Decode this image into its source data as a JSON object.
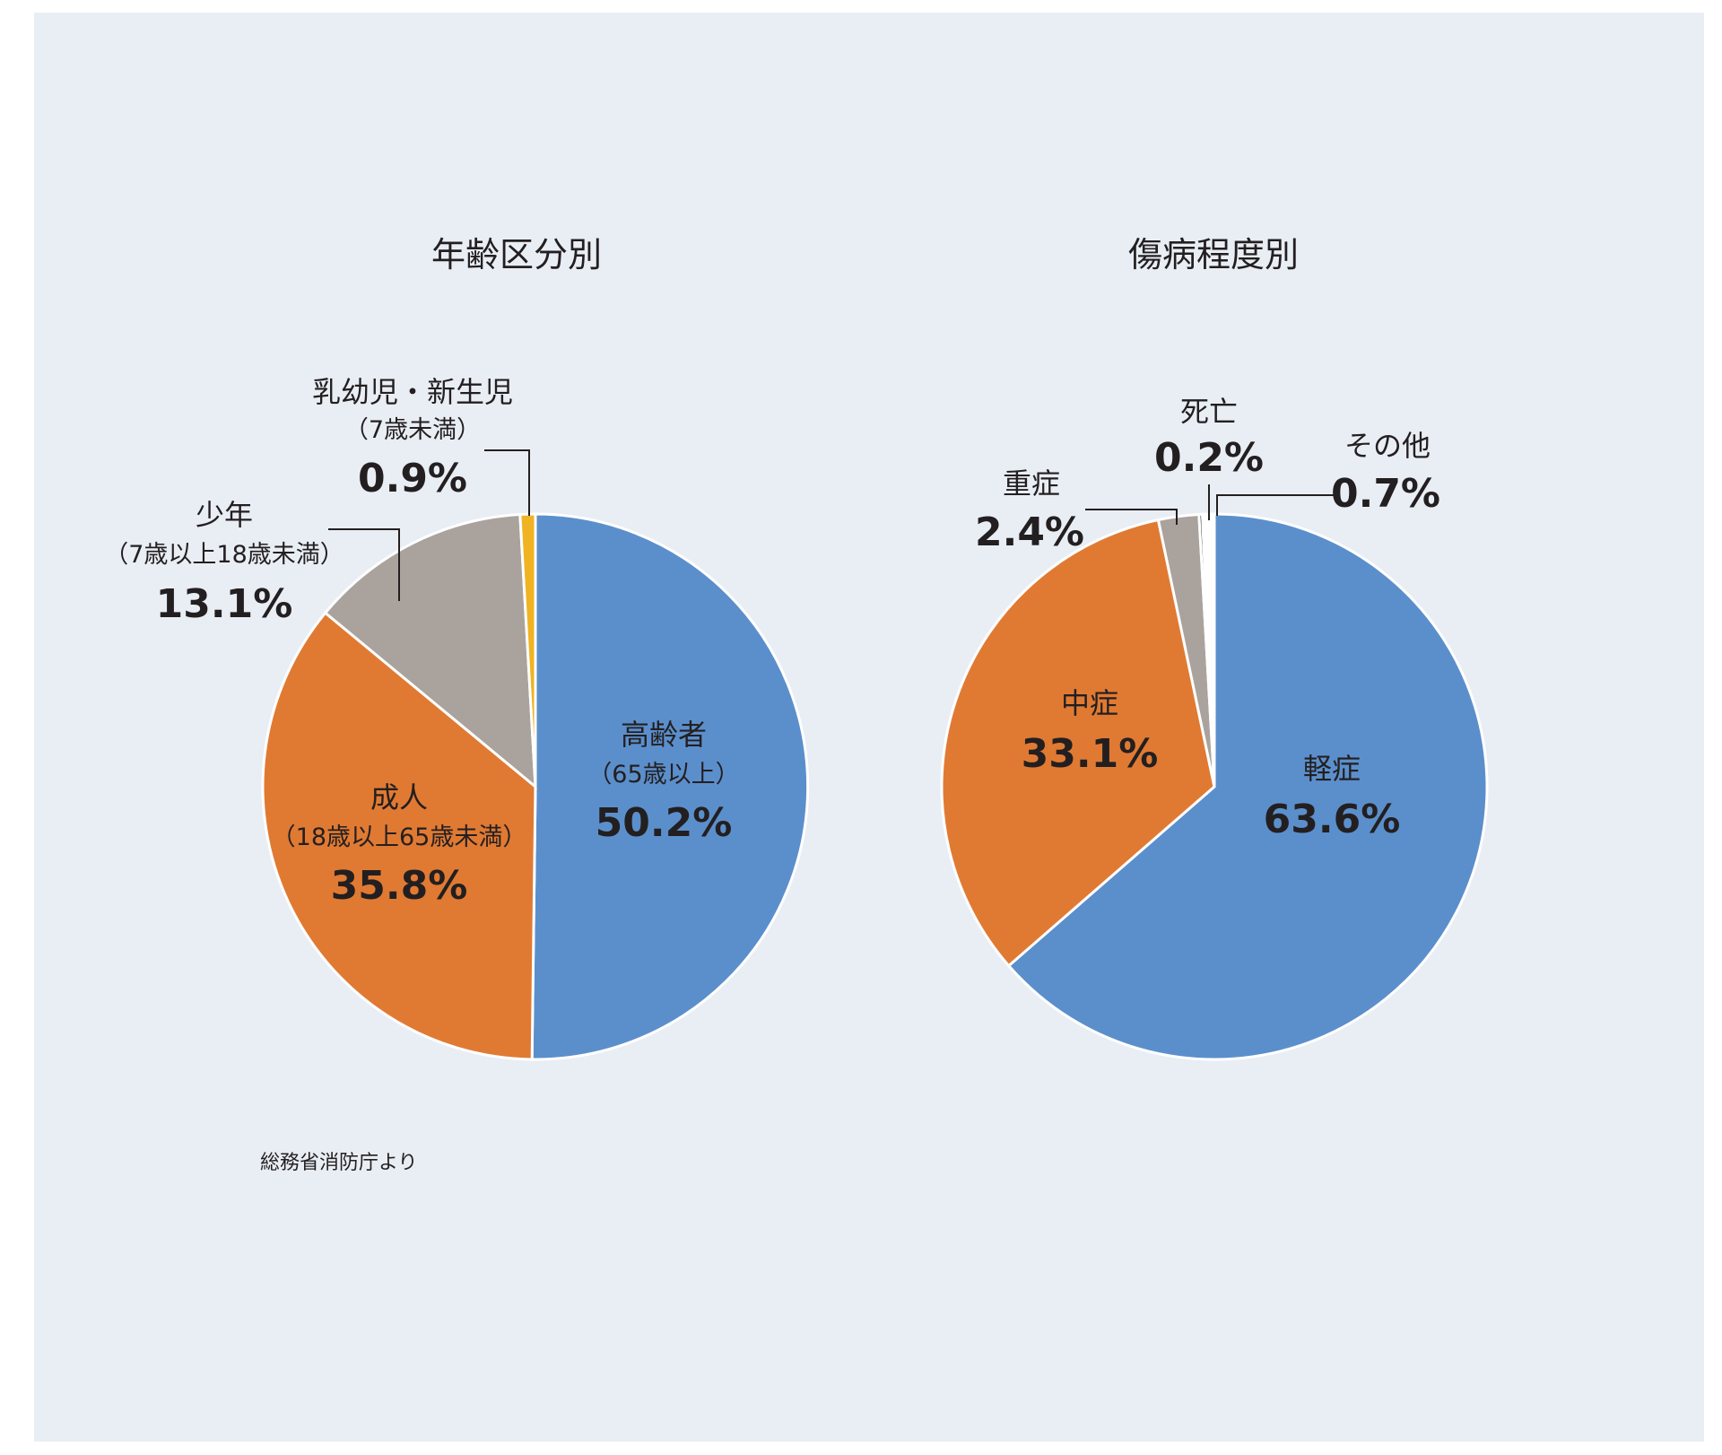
{
  "chart_data": [
    {
      "type": "pie",
      "title": "年齢区分別",
      "slices": [
        {
          "name": "高齢者",
          "sub": "（65歳以上）",
          "value": 50.2,
          "label": "50.2%",
          "color": "#5b8fcc"
        },
        {
          "name": "成人",
          "sub": "（18歳以上65歳未満）",
          "value": 35.8,
          "label": "35.8%",
          "color": "#e07a33"
        },
        {
          "name": "少年",
          "sub": "（7歳以上18歳未満）",
          "value": 13.1,
          "label": "13.1%",
          "color": "#aaa39d"
        },
        {
          "name": "乳幼児・新生児",
          "sub": "（7歳未満）",
          "value": 0.9,
          "label": "0.9%",
          "color": "#f0b323"
        }
      ]
    },
    {
      "type": "pie",
      "title": "傷病程度別",
      "slices": [
        {
          "name": "軽症",
          "value": 63.6,
          "label": "63.6%",
          "color": "#5b8fcc"
        },
        {
          "name": "中症",
          "value": 33.1,
          "label": "33.1%",
          "color": "#e07a33"
        },
        {
          "name": "重症",
          "value": 2.4,
          "label": "2.4%",
          "color": "#aaa39d"
        },
        {
          "name": "死亡",
          "value": 0.2,
          "label": "0.2%",
          "color": "#4a4a4a"
        },
        {
          "name": "その他",
          "value": 0.7,
          "label": "0.7%",
          "color": "#ffffff"
        }
      ]
    }
  ],
  "source": "総務省消防庁より"
}
